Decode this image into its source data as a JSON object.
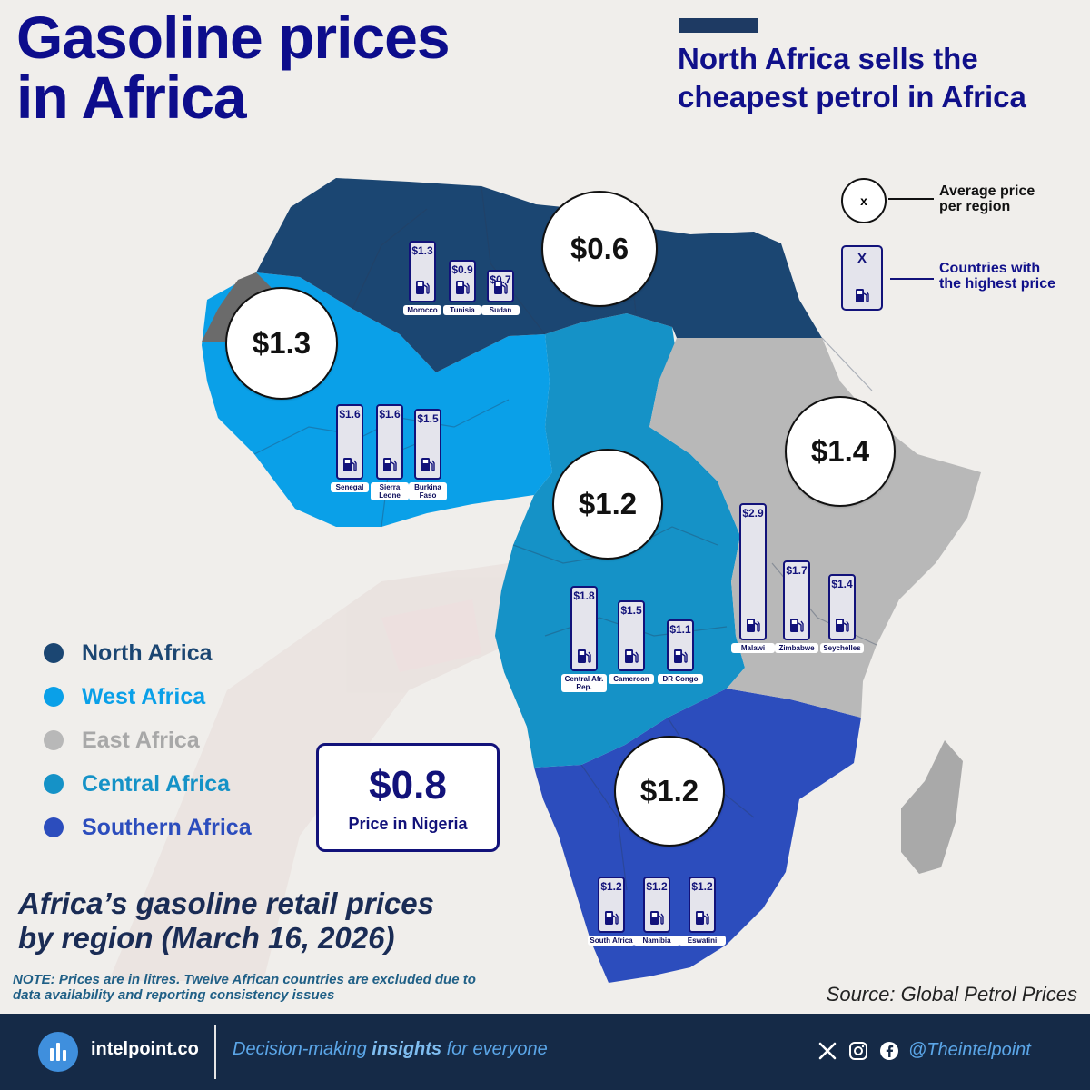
{
  "header": {
    "title_line1": "Gasoline prices",
    "title_line2": "in Africa",
    "subhead_line1": "North Africa sells the",
    "subhead_line2": "cheapest petrol in Africa"
  },
  "colors": {
    "north": "#1b4672",
    "west": "#0aa0e8",
    "east": "#b8b8b8",
    "central": "#1592c7",
    "southern": "#2c4dbd",
    "madagascar": "#a9a9a9",
    "navy": "#12127a"
  },
  "key": {
    "circle_symbol": "x",
    "circle_label_line1": "Average price",
    "circle_label_line2": "per region",
    "bar_symbol": "X",
    "bar_label_line1": "Countries with",
    "bar_label_line2": "the highest price",
    "bar_icon": "fuel-pump-icon"
  },
  "regions": [
    {
      "key": "north",
      "name": "North Africa",
      "average": "$0.6",
      "average_value": 0.6
    },
    {
      "key": "west",
      "name": "West Africa",
      "average": "$1.3",
      "average_value": 1.3
    },
    {
      "key": "east",
      "name": "East Africa",
      "average": "$1.4",
      "average_value": 1.4
    },
    {
      "key": "central",
      "name": "Central Africa",
      "average": "$1.2",
      "average_value": 1.2
    },
    {
      "key": "southern",
      "name": "Southern Africa",
      "average": "$1.2",
      "average_value": 1.2
    }
  ],
  "countries": [
    {
      "region": "north",
      "name": "Morocco",
      "label": "$1.3",
      "value": 1.3
    },
    {
      "region": "north",
      "name": "Tunisia",
      "label": "$0.9",
      "value": 0.9
    },
    {
      "region": "north",
      "name": "Sudan",
      "label": "$0.7",
      "value": 0.7
    },
    {
      "region": "west",
      "name": "Senegal",
      "label": "$1.6",
      "value": 1.6
    },
    {
      "region": "west",
      "name": "Sierra Leone",
      "label": "$1.6",
      "value": 1.6
    },
    {
      "region": "west",
      "name": "Burkina Faso",
      "label": "$1.5",
      "value": 1.5
    },
    {
      "region": "central",
      "name": "Central Afr. Rep.",
      "label": "$1.8",
      "value": 1.8
    },
    {
      "region": "central",
      "name": "Cameroon",
      "label": "$1.5",
      "value": 1.5
    },
    {
      "region": "central",
      "name": "DR Congo",
      "label": "$1.1",
      "value": 1.1
    },
    {
      "region": "east",
      "name": "Malawi",
      "label": "$2.9",
      "value": 2.9
    },
    {
      "region": "east",
      "name": "Zimbabwe",
      "label": "$1.7",
      "value": 1.7
    },
    {
      "region": "east",
      "name": "Seychelles",
      "label": "$1.4",
      "value": 1.4
    },
    {
      "region": "southern",
      "name": "South Africa",
      "label": "$1.2",
      "value": 1.2
    },
    {
      "region": "southern",
      "name": "Namibia",
      "label": "$1.2",
      "value": 1.2
    },
    {
      "region": "southern",
      "name": "Eswatini",
      "label": "$1.2",
      "value": 1.2
    }
  ],
  "nigeria": {
    "value": "$0.8",
    "label": "Price in Nigeria"
  },
  "caption_line1": "Africa’s gasoline retail prices",
  "caption_line2": "by region (March 16, 2026)",
  "note_line1": "NOTE: Prices are in litres. Twelve African countries are excluded due to",
  "note_line2": "data availability and reporting consistency issues",
  "source": "Source: Global Petrol Prices",
  "footer": {
    "site": "intelpoint.co",
    "tagline_pre": "Decision-making ",
    "tagline_bold": "insights",
    "tagline_post": " for everyone",
    "handle": "@Theintelpoint",
    "social_icons": [
      "x-logo-icon",
      "instagram-icon",
      "facebook-icon"
    ]
  }
}
